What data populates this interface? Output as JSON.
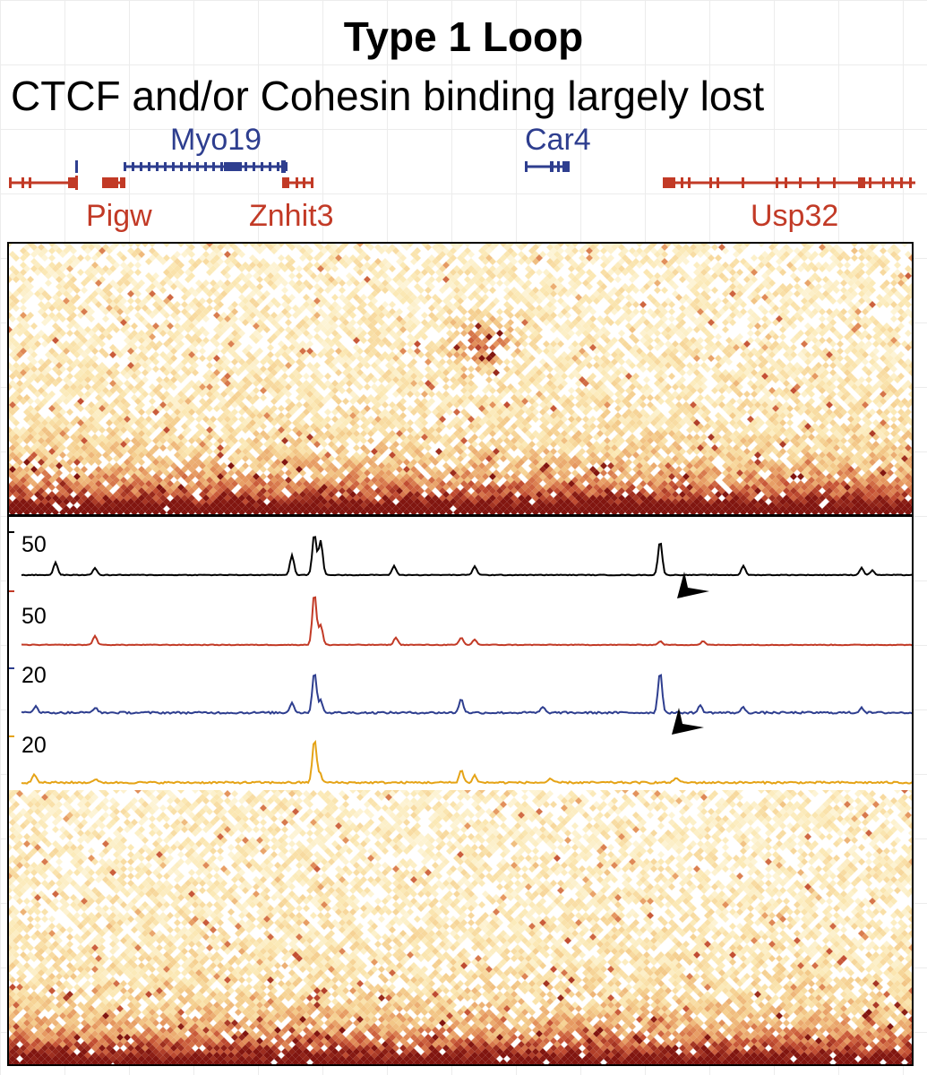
{
  "title": "Type 1 Loop",
  "subtitle": "CTCF and/or Cohesin binding largely lost",
  "genes": {
    "top": [
      {
        "name": "Myo19",
        "color": "#2e3e8f"
      },
      {
        "name": "Car4",
        "color": "#2e3e8f"
      }
    ],
    "bottom": [
      {
        "name": "Pigw",
        "color": "#c23a26"
      },
      {
        "name": "Znhit3",
        "color": "#c23a26"
      },
      {
        "name": "Usp32",
        "color": "#c23a26"
      }
    ]
  },
  "tracks": [
    {
      "scale": "50",
      "color": "#000000"
    },
    {
      "scale": "50",
      "color": "#c23a26"
    },
    {
      "scale": "20",
      "color": "#2e3e8f"
    },
    {
      "scale": "20",
      "color": "#e5a316"
    }
  ],
  "colors": {
    "heatmap_low": "#fbe8b4",
    "heatmap_mid": "#e9a46a",
    "heatmap_high": "#8e1b12",
    "arrowhead": "#000000"
  },
  "icons": [
    "arrowhead-marker"
  ]
}
